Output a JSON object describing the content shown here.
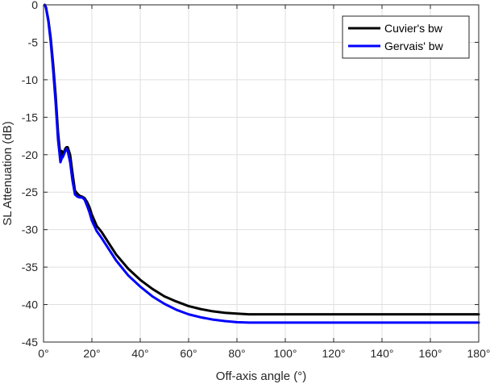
{
  "chart_data": {
    "type": "line",
    "xlabel": "Off-axis angle (°)",
    "ylabel": "SL Attenuation (dB)",
    "xlim": [
      0,
      180
    ],
    "ylim": [
      -45,
      0
    ],
    "grid": true,
    "legend_position": "top-right",
    "xticks": [
      0,
      20,
      40,
      60,
      80,
      100,
      120,
      140,
      160,
      180
    ],
    "xtick_labels": [
      "0°",
      "20°",
      "40°",
      "60°",
      "80°",
      "100°",
      "120°",
      "140°",
      "160°",
      "180°"
    ],
    "yticks": [
      0,
      -5,
      -10,
      -15,
      -20,
      -25,
      -30,
      -35,
      -40,
      -45
    ],
    "ytick_labels": [
      "0",
      "-5",
      "-10",
      "-15",
      "-20",
      "-25",
      "-30",
      "-35",
      "-40",
      "-45"
    ],
    "series": [
      {
        "name": "Cuvier's bw",
        "color": "#000000",
        "x": [
          0.5,
          1,
          2,
          3,
          4,
          5,
          6,
          7,
          7.5,
          8,
          9,
          9.5,
          10,
          11,
          12,
          13,
          14,
          15,
          16,
          17,
          18,
          19,
          20,
          22,
          24,
          27,
          30,
          35,
          40,
          45,
          50,
          55,
          60,
          65,
          70,
          75,
          80,
          85,
          88,
          90,
          100,
          120,
          140,
          160,
          180
        ],
        "y": [
          0,
          -0.3,
          -2,
          -4.5,
          -8,
          -12,
          -17,
          -20.3,
          -19.5,
          -20,
          -19.2,
          -19,
          -19,
          -20,
          -22.5,
          -24.8,
          -25.2,
          -25.5,
          -25.6,
          -25.8,
          -26.3,
          -27,
          -28,
          -29.5,
          -30.3,
          -31.8,
          -33.3,
          -35.2,
          -36.7,
          -37.9,
          -38.9,
          -39.6,
          -40.2,
          -40.6,
          -40.9,
          -41.1,
          -41.2,
          -41.3,
          -41.3,
          -41.3,
          -41.3,
          -41.3,
          -41.3,
          -41.3,
          -41.3
        ]
      },
      {
        "name": "Gervais' bw",
        "color": "#0000ff",
        "x": [
          0.5,
          1,
          2,
          3,
          4,
          5,
          6,
          7,
          7.5,
          8,
          9,
          9.5,
          10,
          11,
          12,
          13,
          14,
          15,
          16,
          17,
          18,
          19,
          20,
          22,
          24,
          27,
          30,
          35,
          40,
          45,
          50,
          55,
          60,
          65,
          70,
          75,
          80,
          85,
          88,
          90,
          100,
          120,
          140,
          160,
          180
        ],
        "y": [
          0,
          -0.4,
          -2.2,
          -5,
          -8.8,
          -13,
          -18,
          -21,
          -20.5,
          -20.3,
          -19.5,
          -19.2,
          -19.5,
          -21,
          -23.5,
          -25.3,
          -25.6,
          -25.7,
          -25.7,
          -26,
          -26.8,
          -27.7,
          -28.8,
          -30.2,
          -31.1,
          -32.6,
          -34.1,
          -36.1,
          -37.6,
          -38.9,
          -39.9,
          -40.7,
          -41.3,
          -41.7,
          -42,
          -42.2,
          -42.35,
          -42.4,
          -42.4,
          -42.4,
          -42.4,
          -42.4,
          -42.4,
          -42.4,
          -42.4
        ]
      }
    ]
  }
}
